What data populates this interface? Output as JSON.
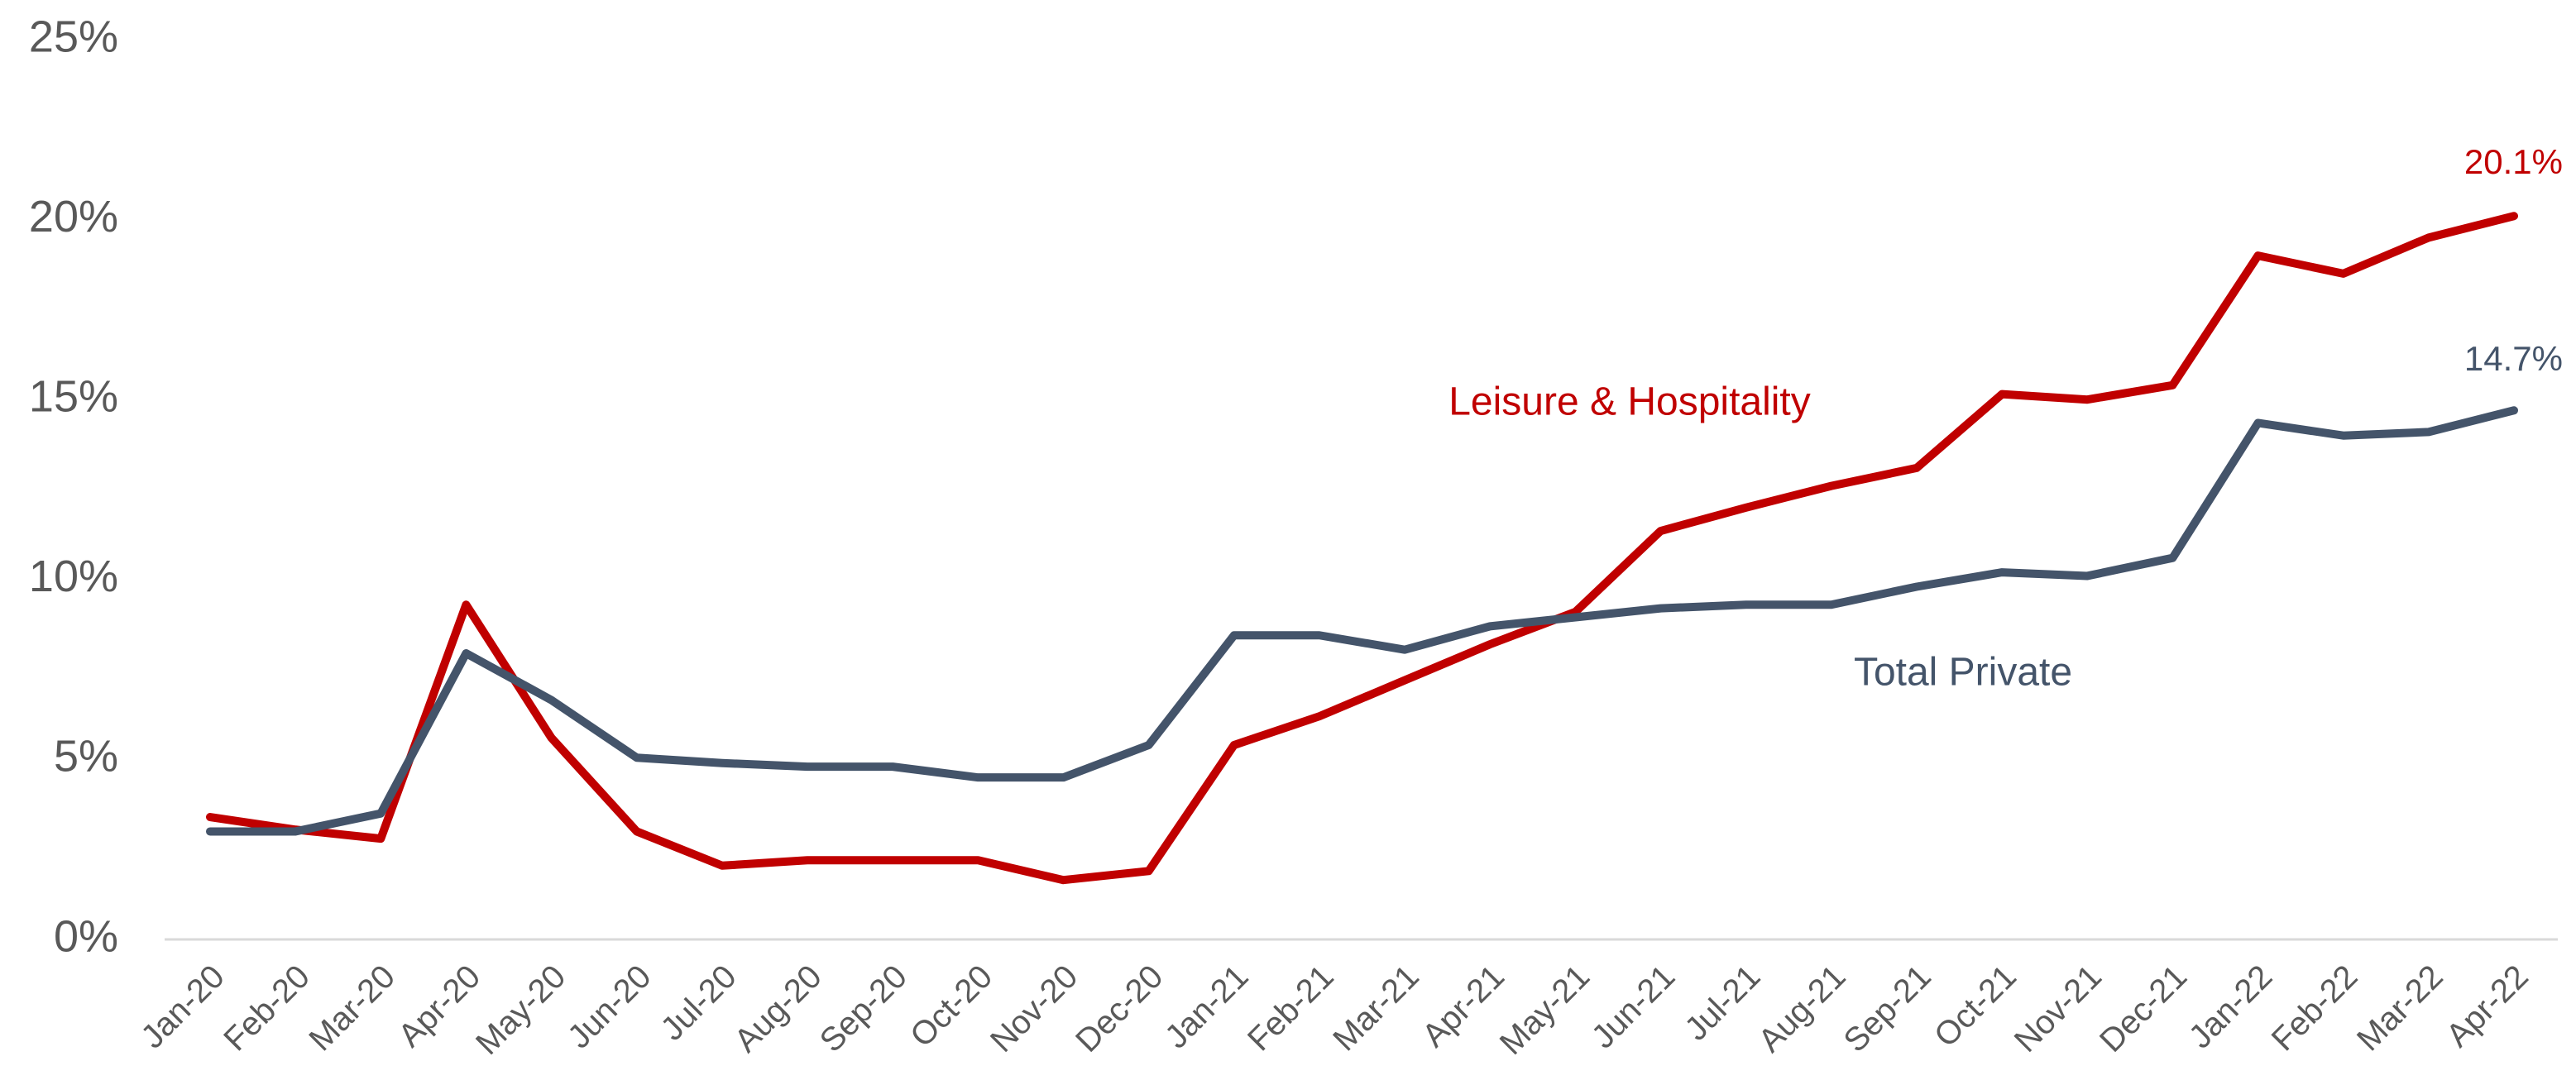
{
  "chart_data": {
    "type": "line",
    "categories": [
      "Jan-20",
      "Feb-20",
      "Mar-20",
      "Apr-20",
      "May-20",
      "Jun-20",
      "Jul-20",
      "Aug-20",
      "Sep-20",
      "Oct-20",
      "Nov-20",
      "Dec-20",
      "Jan-21",
      "Feb-21",
      "Mar-21",
      "Apr-21",
      "May-21",
      "Jun-21",
      "Jul-21",
      "Aug-21",
      "Sep-21",
      "Oct-21",
      "Nov-21",
      "Dec-21",
      "Jan-22",
      "Feb-22",
      "Mar-22",
      "Apr-22"
    ],
    "series": [
      {
        "name": "Leisure & Hospitality",
        "color": "#c00000",
        "values": [
          3.4,
          3.05,
          2.8,
          9.3,
          5.6,
          3.0,
          2.05,
          2.2,
          2.2,
          2.2,
          1.65,
          1.9,
          5.4,
          6.2,
          7.2,
          8.2,
          9.1,
          11.35,
          12.0,
          12.6,
          13.1,
          15.15,
          15.0,
          15.4,
          19.0,
          18.5,
          19.5,
          20.1
        ],
        "value_labels": [
          null,
          null,
          null,
          null,
          null,
          null,
          null,
          null,
          null,
          null,
          null,
          null,
          null,
          null,
          null,
          null,
          null,
          null,
          null,
          null,
          null,
          null,
          null,
          null,
          null,
          null,
          null,
          "20.1%"
        ]
      },
      {
        "name": "Total Private",
        "color": "#44546a",
        "values": [
          3.0,
          3.0,
          3.5,
          7.95,
          6.65,
          5.05,
          4.9,
          4.8,
          4.8,
          4.5,
          4.5,
          5.4,
          8.45,
          8.45,
          8.05,
          8.7,
          8.95,
          9.2,
          9.3,
          9.3,
          9.8,
          10.2,
          10.1,
          10.6,
          14.35,
          14.0,
          14.1,
          14.7
        ],
        "value_labels": [
          null,
          null,
          null,
          null,
          null,
          null,
          null,
          null,
          null,
          null,
          null,
          null,
          null,
          null,
          null,
          null,
          null,
          null,
          null,
          null,
          null,
          null,
          null,
          null,
          null,
          null,
          null,
          "14.7%"
        ]
      }
    ],
    "ylim": [
      0,
      25
    ],
    "yticks": [
      {
        "value": 0,
        "label": "0%"
      },
      {
        "value": 5,
        "label": "5%"
      },
      {
        "value": 10,
        "label": "10%"
      },
      {
        "value": 15,
        "label": "15%"
      },
      {
        "value": 20,
        "label": "20%"
      },
      {
        "value": 25,
        "label": "25%"
      }
    ],
    "grid": false
  }
}
